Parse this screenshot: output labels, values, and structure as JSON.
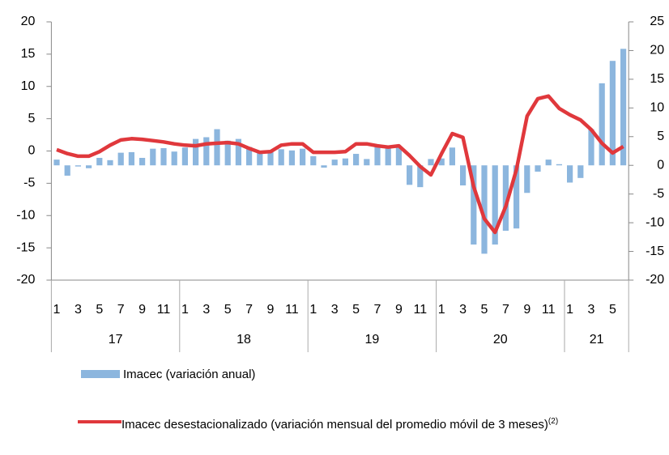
{
  "chart_data": {
    "type": "bar_line",
    "categories": [
      1,
      null,
      3,
      null,
      5,
      null,
      7,
      null,
      9,
      null,
      11,
      null,
      1,
      null,
      3,
      null,
      5,
      null,
      7,
      null,
      9,
      null,
      11,
      null,
      1,
      null,
      3,
      null,
      5,
      null,
      7,
      null,
      9,
      null,
      11,
      null,
      1,
      null,
      3,
      null,
      5,
      null,
      7,
      null,
      9,
      null,
      11,
      null,
      1,
      null,
      3,
      null,
      5,
      null
    ],
    "years": [
      "17",
      "18",
      "19",
      "20",
      "21"
    ],
    "series": [
      {
        "name": "Imacec (variación anual)",
        "type": "bar",
        "axis": "y2",
        "color": "#8cb6de",
        "values": [
          1.0,
          -1.8,
          -0.2,
          -0.5,
          1.3,
          0.9,
          2.2,
          2.3,
          1.3,
          2.9,
          3.0,
          2.4,
          3.1,
          4.6,
          4.9,
          6.3,
          4.3,
          4.6,
          3.2,
          2.5,
          2.3,
          2.8,
          2.6,
          2.9,
          1.6,
          -0.4,
          1.0,
          1.2,
          2.0,
          1.1,
          3.2,
          3.3,
          3.1,
          -3.4,
          -3.8,
          1.1,
          1.2,
          3.1,
          -3.5,
          -13.8,
          -15.4,
          -13.8,
          -11.4,
          -11.0,
          -4.8,
          -1.1,
          1.0,
          0.2,
          -3.0,
          -2.2,
          6.3,
          14.3,
          18.2,
          20.3
        ]
      },
      {
        "name": "Imacec desestacionalizado (variación mensual del promedio móvil de 3 meses)",
        "note_ref": "(2)",
        "type": "line",
        "axis": "y",
        "color": "#e0383c",
        "values": [
          0.2,
          -0.4,
          -0.8,
          -0.8,
          -0.1,
          0.9,
          1.7,
          1.9,
          1.8,
          1.6,
          1.4,
          1.1,
          0.9,
          0.8,
          1.1,
          1.2,
          1.3,
          1.1,
          0.4,
          -0.2,
          -0.1,
          0.9,
          1.1,
          1.1,
          -0.2,
          -0.2,
          -0.2,
          -0.1,
          1.1,
          1.1,
          0.8,
          0.6,
          0.8,
          -0.7,
          -2.4,
          -3.7,
          -0.4,
          2.7,
          2.1,
          -5.5,
          -10.5,
          -12.6,
          -8.6,
          -2.9,
          5.4,
          8.1,
          8.5,
          6.6,
          5.6,
          4.8,
          3.3,
          1.2,
          -0.3,
          0.7
        ]
      }
    ],
    "ylim": [
      -20,
      20
    ],
    "yticks": [
      -20,
      -15,
      -10,
      -5,
      0,
      5,
      10,
      15,
      20
    ],
    "y2lim": [
      -20,
      25
    ],
    "y2ticks": [
      -20,
      -15,
      -10,
      -5,
      0,
      5,
      10,
      15,
      20,
      25
    ]
  }
}
